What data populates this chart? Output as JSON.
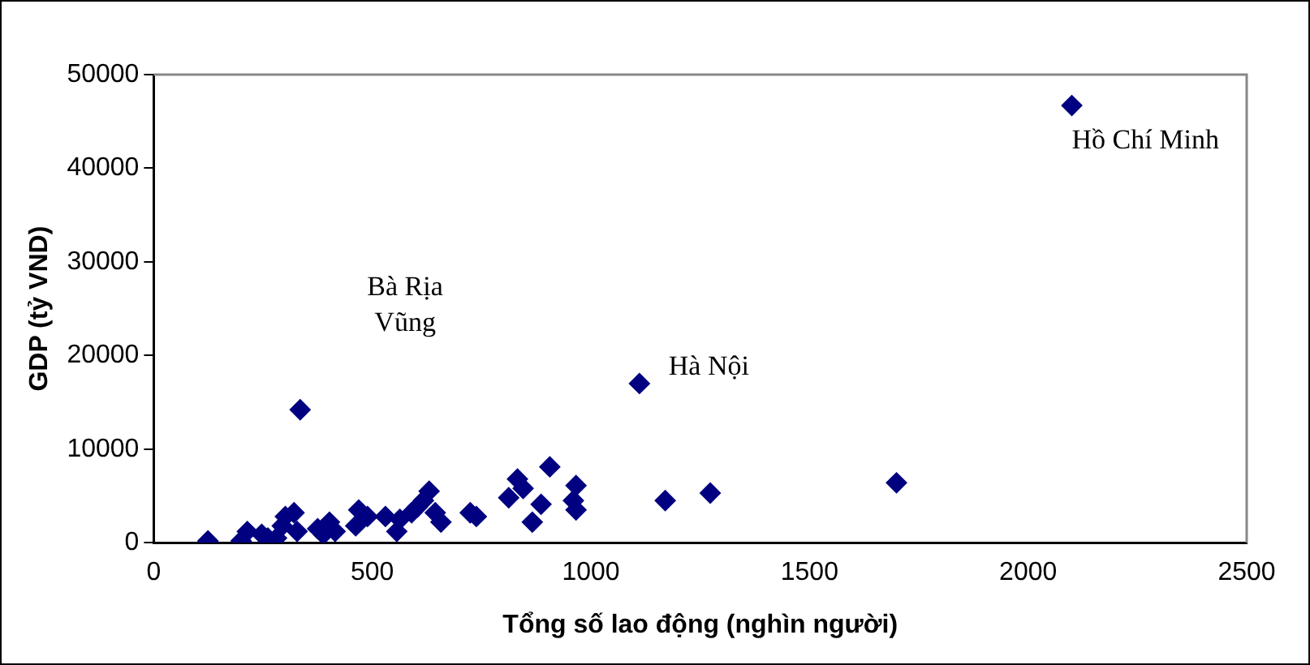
{
  "chart_data": {
    "type": "scatter",
    "xlabel": "Tổng số lao động (nghìn người)",
    "ylabel": "GDP (tỷ VND)",
    "x": [
      124,
      200,
      214,
      247,
      261,
      281,
      294,
      301,
      321,
      328,
      375,
      388,
      402,
      415,
      462,
      469,
      489,
      530,
      556,
      563,
      590,
      603,
      617,
      630,
      644,
      657,
      724,
      738,
      812,
      832,
      845,
      866,
      886,
      906,
      960,
      966,
      966,
      1170,
      1273,
      1699,
      335,
      1111,
      2100
    ],
    "values": [
      200,
      200,
      1200,
      900,
      500,
      500,
      1800,
      2800,
      3200,
      1200,
      1500,
      900,
      2200,
      1200,
      1800,
      3500,
      2800,
      2800,
      1200,
      2500,
      3200,
      3800,
      4500,
      5500,
      3200,
      2200,
      3200,
      2800,
      4800,
      6800,
      5800,
      2200,
      4100,
      8100,
      4500,
      6100,
      3500,
      4500,
      5300,
      6400,
      14200,
      17000,
      46700
    ],
    "color": "#000080",
    "marker": "diamond",
    "xlim": [
      0,
      2500
    ],
    "xticks": [
      0,
      500,
      1000,
      1500,
      2000,
      2500
    ],
    "ylim": [
      0,
      50000
    ],
    "yticks": [
      0,
      10000,
      20000,
      30000,
      40000,
      50000
    ],
    "grid": false,
    "legend": false,
    "annotations": [
      {
        "text": "Hồ Chí Minh",
        "x": 2100,
        "y": 46700
      },
      {
        "text": "Hà Nội",
        "x": 1111,
        "y": 17000
      },
      "Bà Rịa Vũng"
    ]
  }
}
